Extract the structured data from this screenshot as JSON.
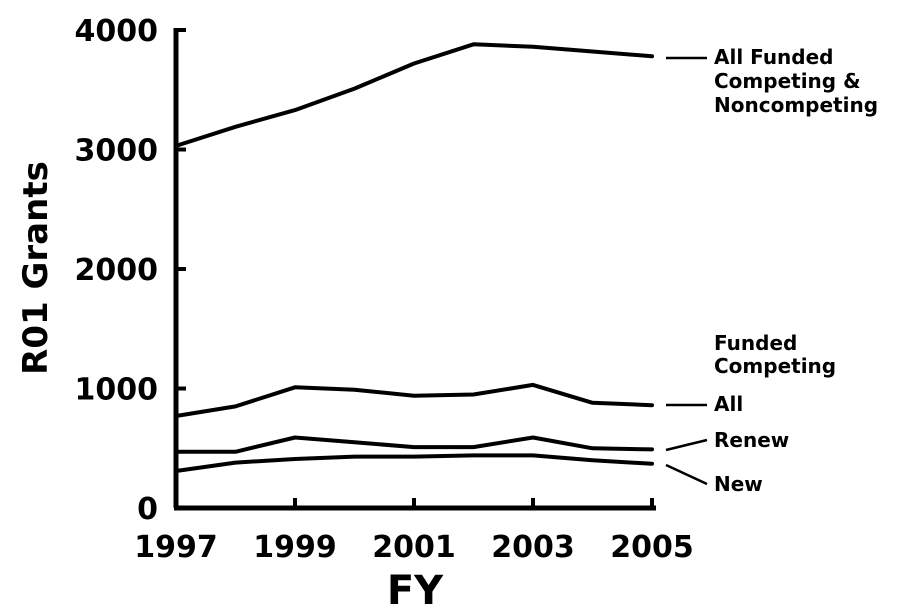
{
  "chart_data": {
    "type": "line",
    "xlabel": "FY",
    "ylabel": "R01 Grants",
    "xlim": [
      1997,
      2005
    ],
    "ylim": [
      0,
      4000
    ],
    "xticks": [
      "1997",
      "1999",
      "2001",
      "2003",
      "2005"
    ],
    "yticks": [
      "0",
      "1000",
      "2000",
      "3000",
      "4000"
    ],
    "group_label": [
      "Funded",
      "Competing"
    ],
    "x": [
      1997,
      1998,
      1999,
      2000,
      2001,
      2002,
      2003,
      2004,
      2005
    ],
    "series": [
      {
        "name": "All Funded Competing & Noncompeting",
        "label_lines": [
          "All Funded",
          "Competing &",
          "Noncompeting"
        ],
        "values": [
          3030,
          3190,
          3330,
          3510,
          3720,
          3880,
          3860,
          3820,
          3780
        ]
      },
      {
        "name": "All",
        "label_lines": [
          "All"
        ],
        "values": [
          770,
          850,
          1010,
          990,
          940,
          950,
          1030,
          880,
          860
        ]
      },
      {
        "name": "Renew",
        "label_lines": [
          "Renew"
        ],
        "values": [
          470,
          470,
          590,
          550,
          510,
          510,
          590,
          500,
          490
        ]
      },
      {
        "name": "New",
        "label_lines": [
          "New"
        ],
        "values": [
          310,
          380,
          410,
          430,
          430,
          440,
          440,
          400,
          370
        ]
      }
    ]
  }
}
